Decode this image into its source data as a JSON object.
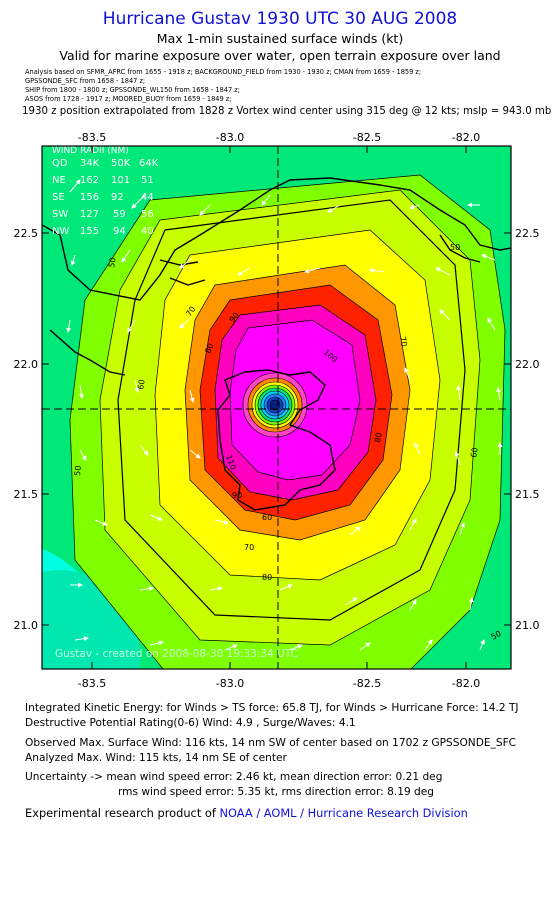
{
  "header": {
    "title": "Hurricane Gustav 1930 UTC 30 AUG 2008",
    "subtitle1": "Max 1-min sustained surface winds (kt)",
    "subtitle2": "Valid for marine exposure over water, open terrain exposure over land",
    "sources": [
      "Analysis based on   SFMR_AFRC from 1655 - 1918 z;  BACKGROUND_FIELD from 1930 - 1930 z;  CMAN from 1659 - 1859 z;",
      "GPSSONDE_SFC from 1658 - 1847 z;",
      "SHIP from 1800 - 1800 z;  GPSSONDE_WL150 from 1658 - 1847 z;",
      "ASOS from 1728 - 1917 z;  MOORED_BUOY from 1659 - 1849 z;"
    ],
    "position_note": "1930 z position extrapolated from 1828 z Vortex wind center using 315 deg @ 12 kts; mslp = 943.0 mb"
  },
  "map": {
    "lon_ticks": [
      "-83.5",
      "-83.0",
      "-82.5",
      "-82.0"
    ],
    "lat_ticks": [
      "22.5",
      "22.0",
      "21.5",
      "21.0"
    ],
    "contour_labels": [
      "50",
      "60",
      "70",
      "80",
      "90",
      "100",
      "110",
      "50",
      "60",
      "70",
      "80",
      "90",
      "50",
      "60",
      "70",
      "80",
      "50"
    ],
    "wind_radii": {
      "title": "WIND RADII (NM)",
      "header": [
        "QD",
        "34K",
        "50K",
        "64K"
      ],
      "rows": [
        [
          "NE",
          "162",
          "101",
          "51"
        ],
        [
          "SE",
          "156",
          "92",
          "44"
        ],
        [
          "SW",
          "127",
          "59",
          "56"
        ],
        [
          "NW",
          "155",
          "94",
          "40"
        ]
      ]
    },
    "credit": "Gustav - created on 2008-08-30 19:33:34 UTC",
    "colors": {
      "ts_low": "#00e878",
      "band_50": "#80ff00",
      "band_60": "#c8ff00",
      "band_70": "#ffff00",
      "band_80": "#ff9800",
      "band_90": "#ff2200",
      "band_100": "#ff00c0",
      "band_110": "#ff00ff",
      "core": "#1040c0",
      "cyan_corner": "#00ffe0"
    }
  },
  "footer": {
    "ike": "Integrated Kinetic Energy:  for Winds > TS force: 65.8 TJ,  for Winds > Hurricane Force: 14.2 TJ",
    "dpr": "Destructive Potential Rating(0-6)   Wind: 4.9 , Surge/Waves: 4.1",
    "observed": "Observed Max. Surface Wind: 116 kts, 14 nm SW of center based on 1702 z GPSSONDE_SFC",
    "analyzed": "Analyzed Max. Wind: 115 kts, 14 nm SE of center",
    "uncert1": "Uncertainty -> mean wind speed error: 2.46 kt,   mean direction error: 0.21 deg",
    "uncert2": "rms wind speed error: 5.35 kt,  rms direction error: 8.19 deg",
    "product_prefix": "Experimental research product of ",
    "product_org": "NOAA / AOML / Hurricane Research Division"
  }
}
